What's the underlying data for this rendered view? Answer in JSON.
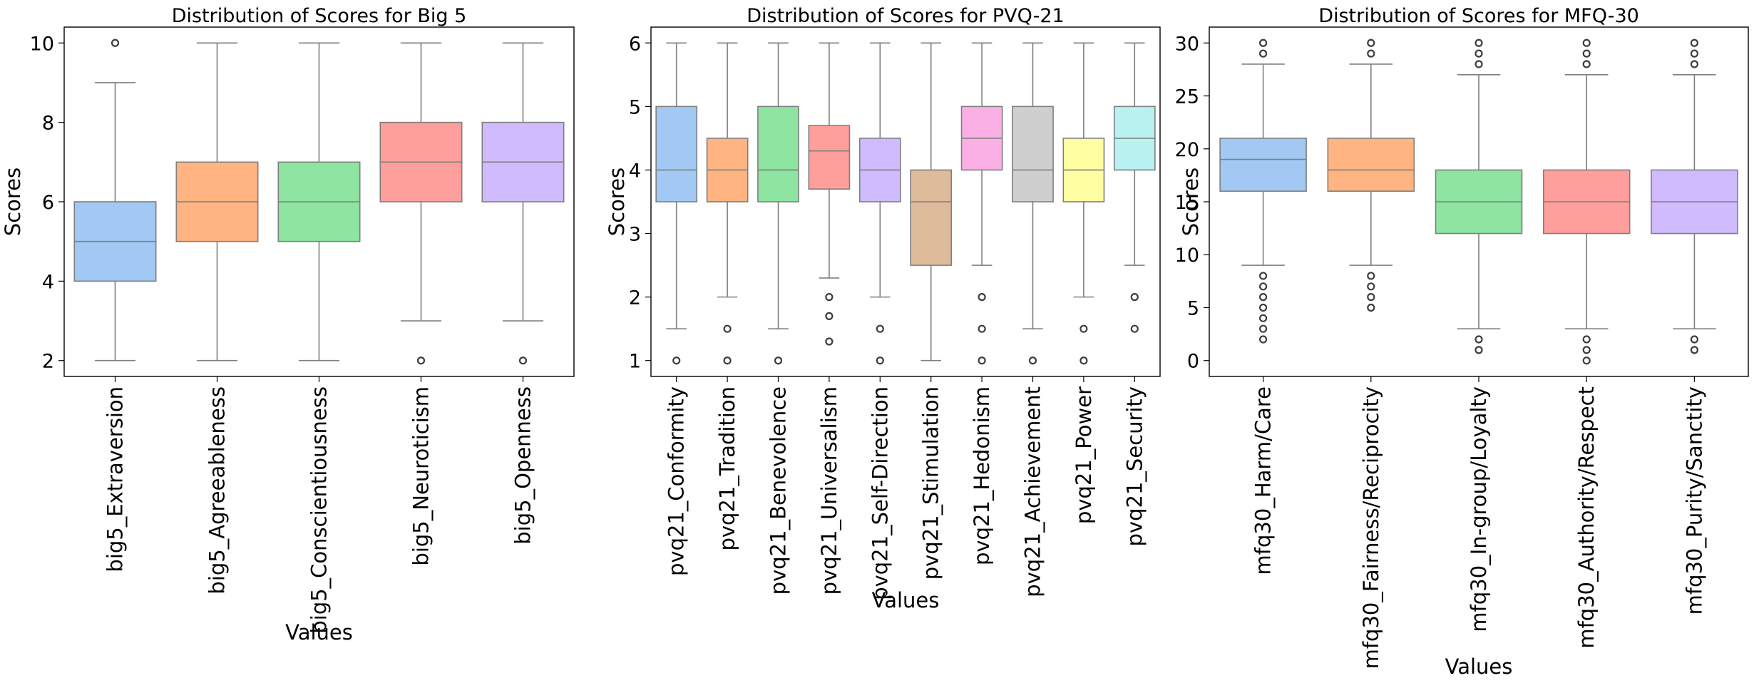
{
  "chart_data": [
    {
      "type": "box",
      "title": "Distribution of Scores for Big 5",
      "xlabel": "Values",
      "ylabel": "Scores",
      "ylim": [
        1.6,
        10.4
      ],
      "yticks": [
        2,
        4,
        6,
        8,
        10
      ],
      "categories": [
        "big5_Extraversion",
        "big5_Agreeableness",
        "big5_Conscientiousness",
        "big5_Neuroticism",
        "big5_Openness"
      ],
      "colors": [
        "#a1c9f4",
        "#ffb482",
        "#8de5a1",
        "#ff9f9b",
        "#d0bbff"
      ],
      "boxes": [
        {
          "whisker_low": 2,
          "q1": 4,
          "median": 5,
          "q3": 6,
          "whisker_high": 9,
          "outliers": [
            10
          ]
        },
        {
          "whisker_low": 2,
          "q1": 5,
          "median": 6,
          "q3": 7,
          "whisker_high": 10,
          "outliers": []
        },
        {
          "whisker_low": 2,
          "q1": 5,
          "median": 6,
          "q3": 7,
          "whisker_high": 10,
          "outliers": []
        },
        {
          "whisker_low": 3,
          "q1": 6,
          "median": 7,
          "q3": 8,
          "whisker_high": 10,
          "outliers": [
            2
          ]
        },
        {
          "whisker_low": 3,
          "q1": 6,
          "median": 7,
          "q3": 8,
          "whisker_high": 10,
          "outliers": [
            2
          ]
        }
      ]
    },
    {
      "type": "box",
      "title": "Distribution of Scores for PVQ-21",
      "xlabel": "Values",
      "ylabel": "Scores",
      "ylim": [
        0.75,
        6.25
      ],
      "yticks": [
        1,
        2,
        3,
        4,
        5,
        6
      ],
      "categories": [
        "pvq21_Conformity",
        "pvq21_Tradition",
        "pvq21_Benevolence",
        "pvq21_Universalism",
        "pvq21_Self-Direction",
        "pvq21_Stimulation",
        "pvq21_Hedonism",
        "pvq21_Achievement",
        "pvq21_Power",
        "pvq21_Security"
      ],
      "colors": [
        "#a1c9f4",
        "#ffb482",
        "#8de5a1",
        "#ff9f9b",
        "#d0bbff",
        "#debb9b",
        "#fab0e4",
        "#cfcfcf",
        "#fffea3",
        "#b9f2f0"
      ],
      "boxes": [
        {
          "whisker_low": 1.5,
          "q1": 3.5,
          "median": 4,
          "q3": 5,
          "whisker_high": 6,
          "outliers": [
            1
          ]
        },
        {
          "whisker_low": 2,
          "q1": 3.5,
          "median": 4,
          "q3": 4.5,
          "whisker_high": 6,
          "outliers": [
            1.5,
            1
          ]
        },
        {
          "whisker_low": 1.5,
          "q1": 3.5,
          "median": 4,
          "q3": 5,
          "whisker_high": 6,
          "outliers": [
            1
          ]
        },
        {
          "whisker_low": 2.3,
          "q1": 3.7,
          "median": 4.3,
          "q3": 4.7,
          "whisker_high": 6,
          "outliers": [
            2,
            1.7,
            1.3
          ]
        },
        {
          "whisker_low": 2,
          "q1": 3.5,
          "median": 4,
          "q3": 4.5,
          "whisker_high": 6,
          "outliers": [
            1.5,
            1
          ]
        },
        {
          "whisker_low": 1,
          "q1": 2.5,
          "median": 3.5,
          "q3": 4,
          "whisker_high": 6,
          "outliers": []
        },
        {
          "whisker_low": 2.5,
          "q1": 4,
          "median": 4.5,
          "q3": 5,
          "whisker_high": 6,
          "outliers": [
            2,
            1.5,
            1
          ]
        },
        {
          "whisker_low": 1.5,
          "q1": 3.5,
          "median": 4,
          "q3": 5,
          "whisker_high": 6,
          "outliers": [
            1
          ]
        },
        {
          "whisker_low": 2,
          "q1": 3.5,
          "median": 4,
          "q3": 4.5,
          "whisker_high": 6,
          "outliers": [
            1.5,
            1
          ]
        },
        {
          "whisker_low": 2.5,
          "q1": 4,
          "median": 4.5,
          "q3": 5,
          "whisker_high": 6,
          "outliers": [
            2,
            1.5
          ]
        }
      ]
    },
    {
      "type": "box",
      "title": "Distribution of Scores for MFQ-30",
      "xlabel": "Values",
      "ylabel": "Scores",
      "ylim": [
        -1.5,
        31.5
      ],
      "yticks": [
        0,
        5,
        10,
        15,
        20,
        25,
        30
      ],
      "categories": [
        "mfq30_Harm/Care",
        "mfq30_Fairness/Reciprocity",
        "mfq30_In-group/Loyalty",
        "mfq30_Authority/Respect",
        "mfq30_Purity/Sanctity"
      ],
      "colors": [
        "#a1c9f4",
        "#ffb482",
        "#8de5a1",
        "#ff9f9b",
        "#d0bbff"
      ],
      "boxes": [
        {
          "whisker_low": 9,
          "q1": 16,
          "median": 19,
          "q3": 21,
          "whisker_high": 28,
          "outliers": [
            30,
            29,
            8,
            7,
            6,
            5,
            4,
            3,
            2
          ]
        },
        {
          "whisker_low": 9,
          "q1": 16,
          "median": 18,
          "q3": 21,
          "whisker_high": 28,
          "outliers": [
            30,
            29,
            8,
            7,
            6,
            5
          ]
        },
        {
          "whisker_low": 3,
          "q1": 12,
          "median": 15,
          "q3": 18,
          "whisker_high": 27,
          "outliers": [
            30,
            29,
            28,
            2,
            1
          ]
        },
        {
          "whisker_low": 3,
          "q1": 12,
          "median": 15,
          "q3": 18,
          "whisker_high": 27,
          "outliers": [
            30,
            29,
            28,
            2,
            1,
            0
          ]
        },
        {
          "whisker_low": 3,
          "q1": 12,
          "median": 15,
          "q3": 18,
          "whisker_high": 27,
          "outliers": [
            30,
            29,
            28,
            2,
            1
          ]
        }
      ]
    }
  ]
}
